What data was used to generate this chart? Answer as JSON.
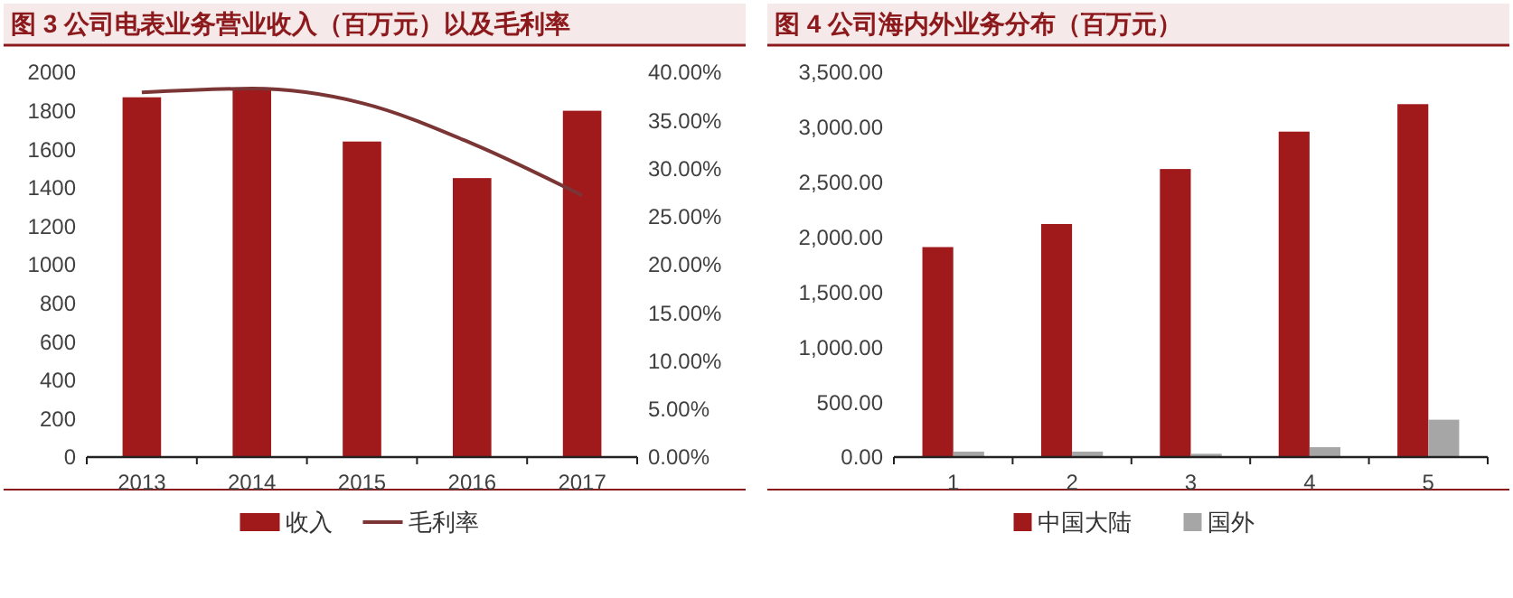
{
  "chart_data": [
    {
      "type": "bar",
      "title": "图 3 公司电表业务营业收入（百万元）以及毛利率",
      "categories": [
        "2013",
        "2014",
        "2015",
        "2016",
        "2017"
      ],
      "series": [
        {
          "name": "收入",
          "color": "#a0191b",
          "values": [
            1870,
            1910,
            1640,
            1450,
            1800
          ]
        },
        {
          "name": "毛利率",
          "type": "line",
          "axis": "y2",
          "color": "#7b3535",
          "values": [
            37.9,
            38.3,
            36.8,
            32.6,
            27.2
          ]
        }
      ],
      "ylim": [
        0,
        2000
      ],
      "yticks": [
        0,
        200,
        400,
        600,
        800,
        1000,
        1200,
        1400,
        1600,
        1800,
        2000
      ],
      "y2lim": [
        0,
        40
      ],
      "y2ticks": [
        {
          "value": 0,
          "label": "0.00%"
        },
        {
          "value": 5,
          "label": "5.00%"
        },
        {
          "value": 10,
          "label": "10.00%"
        },
        {
          "value": 15,
          "label": "15.00%"
        },
        {
          "value": 20,
          "label": "20.00%"
        },
        {
          "value": 25,
          "label": "25.00%"
        },
        {
          "value": 30,
          "label": "30.00%"
        },
        {
          "value": 35,
          "label": "35.00%"
        },
        {
          "value": 40,
          "label": "40.00%"
        }
      ],
      "legend": "bottom",
      "marker": "none",
      "line_style": "solid"
    },
    {
      "type": "bar",
      "title": "图 4 公司海内外业务分布（百万元）",
      "categories": [
        "1",
        "2",
        "3",
        "4",
        "5"
      ],
      "series": [
        {
          "name": "中国大陆",
          "color": "#a0191b",
          "values": [
            1910,
            2120,
            2620,
            2960,
            3210
          ]
        },
        {
          "name": "国外",
          "color": "#a6a6a6",
          "values": [
            50,
            50,
            30,
            90,
            340
          ]
        }
      ],
      "ylim": [
        0,
        3500
      ],
      "yticks": [
        {
          "value": 0,
          "label": "0.00"
        },
        {
          "value": 500,
          "label": "500.00"
        },
        {
          "value": 1000,
          "label": "1,000.00"
        },
        {
          "value": 1500,
          "label": "1,500.00"
        },
        {
          "value": 2000,
          "label": "2,000.00"
        },
        {
          "value": 2500,
          "label": "2,500.00"
        },
        {
          "value": 3000,
          "label": "3,000.00"
        },
        {
          "value": 3500,
          "label": "3,500.00"
        }
      ],
      "legend": "bottom"
    }
  ]
}
